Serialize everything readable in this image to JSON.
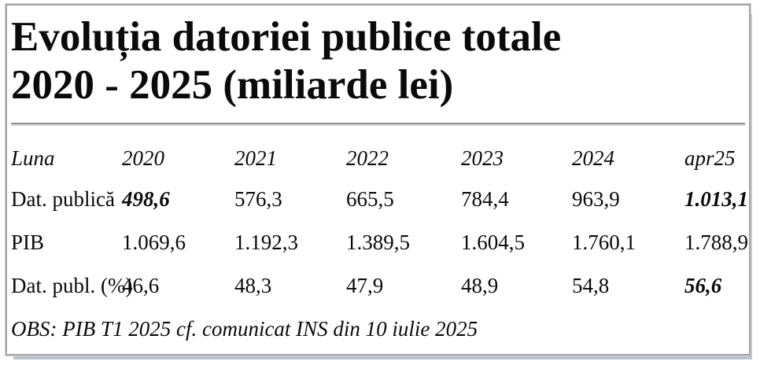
{
  "title": {
    "line1": "Evoluția datoriei publice totale",
    "line2": "2020 - 2025 (miliarde lei)"
  },
  "table": {
    "header": [
      "Luna",
      "2020",
      "2021",
      "2022",
      "2023",
      "2024",
      "apr25"
    ],
    "rows": [
      {
        "label": "Dat. publică",
        "values": [
          "498,6",
          "576,3",
          "665,5",
          "784,4",
          "963,9",
          "1.013,1"
        ]
      },
      {
        "label": "PIB",
        "values": [
          "1.069,6",
          "1.192,3",
          "1.389,5",
          "1.604,5",
          "1.760,1",
          "1.788,9"
        ]
      },
      {
        "label": "Dat. publ. (%)",
        "values": [
          "46,6",
          "48,3",
          "47,9",
          "48,9",
          "54,8",
          "56,6"
        ]
      }
    ],
    "note": "OBS: PIB T1 2025 cf. comunicat INS din 10 iulie 2025"
  },
  "chart_data": {
    "type": "table",
    "title": "Evoluția datoriei publice totale 2020 - 2025 (miliarde lei)",
    "categories": [
      "2020",
      "2021",
      "2022",
      "2023",
      "2024",
      "apr25"
    ],
    "series": [
      {
        "name": "Dat. publică",
        "values": [
          498.6,
          576.3,
          665.5,
          784.4,
          963.9,
          1013.1
        ]
      },
      {
        "name": "PIB",
        "values": [
          1069.6,
          1192.3,
          1389.5,
          1604.5,
          1760.1,
          1788.9
        ]
      },
      {
        "name": "Dat. publ. (%)",
        "values": [
          46.6,
          48.3,
          47.9,
          48.9,
          54.8,
          56.6
        ]
      }
    ],
    "note": "OBS: PIB T1 2025 cf. comunicat INS din 10 iulie 2025"
  },
  "colors": {
    "text": "#0a0a0a",
    "frame_border": "#a2a4a6",
    "frame_shadow": "#bdc3cc",
    "divider": "#8f9092",
    "background": "#ffffff"
  }
}
